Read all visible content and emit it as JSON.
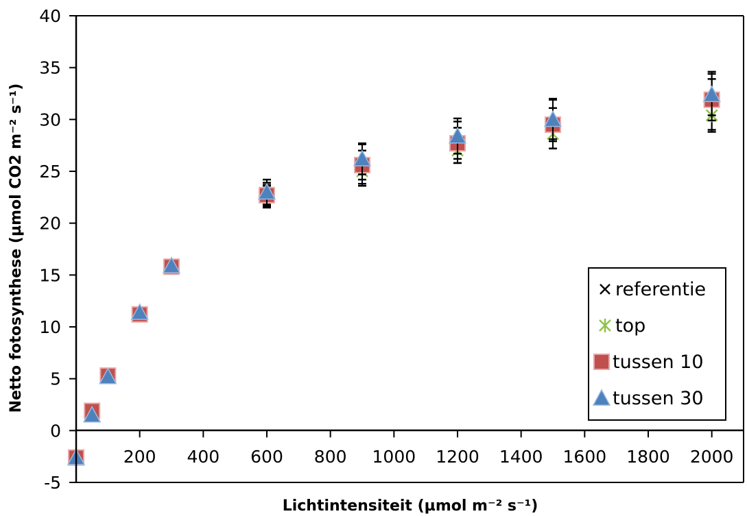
{
  "chart_data": {
    "type": "scatter",
    "xlabel": "Lichtintensiteit (µmol m⁻² s⁻¹)",
    "ylabel": "Netto fotosynthese (µmol CO2  m⁻² s⁻¹)",
    "xlim": [
      0,
      2100
    ],
    "ylim": [
      -5,
      40
    ],
    "x_ticks": [
      "0",
      "200",
      "400",
      "600",
      "800",
      "1000",
      "1200",
      "1400",
      "1600",
      "1800",
      "2000"
    ],
    "y_ticks": [
      "-5",
      "0",
      "5",
      "10",
      "15",
      "20",
      "25",
      "30",
      "35",
      "40"
    ],
    "grid": false,
    "legend_position": "bottom-right",
    "colors": {
      "referentie": "#000000",
      "top": "#8ec24a",
      "tussen 10": "#c0504d",
      "tussen 30": "#4f81bd"
    },
    "series": [
      {
        "name": "referentie",
        "marker": "x",
        "x": [
          0,
          50,
          100,
          200,
          300,
          600,
          900,
          1200,
          1500,
          2000
        ],
        "y": [
          -2.6,
          1.8,
          5.3,
          11.3,
          15.8,
          22.7,
          25.6,
          27.8,
          29.6,
          31.8
        ],
        "err": [
          0,
          0,
          0,
          0,
          0,
          1.2,
          2.0,
          2.0,
          2.4,
          2.8
        ]
      },
      {
        "name": "top",
        "marker": "asterisk",
        "x": [
          0,
          50,
          100,
          200,
          300,
          600,
          900,
          1200,
          1500,
          2000
        ],
        "y": [
          -2.6,
          1.7,
          5.3,
          11.2,
          15.8,
          22.6,
          25.0,
          27.0,
          28.6,
          30.4
        ],
        "err": [
          0,
          0,
          0,
          0,
          0,
          1.0,
          1.2,
          1.2,
          1.4,
          1.6
        ]
      },
      {
        "name": "tussen 10",
        "marker": "square",
        "x": [
          0,
          50,
          100,
          200,
          300,
          600,
          900,
          1200,
          1500,
          2000
        ],
        "y": [
          -2.6,
          1.9,
          5.3,
          11.2,
          15.8,
          22.7,
          25.6,
          27.7,
          29.5,
          31.9
        ],
        "err": [
          0,
          0,
          0,
          0,
          0,
          1.0,
          1.4,
          1.5,
          1.6,
          2.0
        ]
      },
      {
        "name": "tussen 30",
        "marker": "triangle",
        "x": [
          0,
          50,
          100,
          200,
          300,
          600,
          900,
          1200,
          1500,
          2000
        ],
        "y": [
          -2.6,
          1.5,
          5.2,
          11.4,
          15.9,
          23.0,
          26.2,
          28.4,
          30.0,
          32.4
        ],
        "err": [
          0,
          0,
          0,
          0,
          0,
          1.2,
          1.5,
          1.7,
          1.9,
          2.0
        ]
      }
    ]
  }
}
